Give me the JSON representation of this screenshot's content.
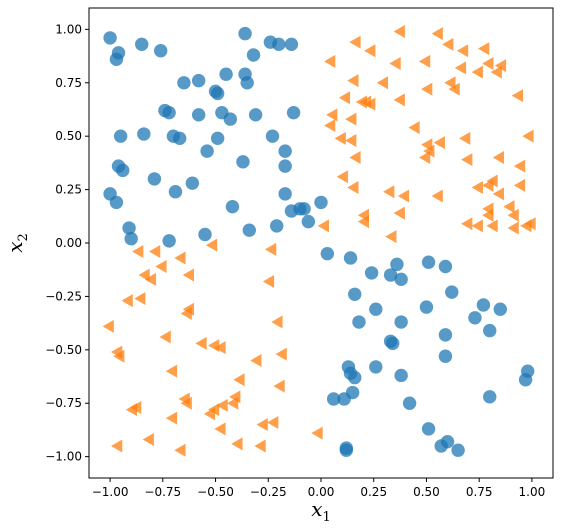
{
  "chart_data": {
    "type": "scatter",
    "title": "",
    "xlabel": "x",
    "xlabel_sub": "1",
    "ylabel": "x",
    "ylabel_sub": "2",
    "xlim": [
      -1.1,
      1.1
    ],
    "ylim": [
      -1.1,
      1.1
    ],
    "xticks": [
      -1.0,
      -0.75,
      -0.5,
      -0.25,
      0.0,
      0.25,
      0.5,
      0.75,
      1.0
    ],
    "xtick_labels": [
      "−1.00",
      "−0.75",
      "−0.50",
      "−0.25",
      "0.00",
      "0.25",
      "0.50",
      "0.75",
      "1.00"
    ],
    "yticks": [
      -1.0,
      -0.75,
      -0.5,
      -0.25,
      0.0,
      0.25,
      0.5,
      0.75,
      1.0
    ],
    "ytick_labels": [
      "−1.00",
      "−0.75",
      "−0.50",
      "−0.25",
      "0.00",
      "0.25",
      "0.50",
      "0.75",
      "1.00"
    ],
    "grid": false,
    "series": [
      {
        "marker": "circle",
        "color": "#1f77b4",
        "points": [
          [
            -1.0,
            0.96
          ],
          [
            -0.97,
            0.86
          ],
          [
            -0.96,
            0.89
          ],
          [
            -0.85,
            0.93
          ],
          [
            -0.76,
            0.9
          ],
          [
            -0.36,
            0.98
          ],
          [
            -0.24,
            0.94
          ],
          [
            -0.2,
            0.93
          ],
          [
            -0.14,
            0.93
          ],
          [
            -0.32,
            0.88
          ],
          [
            -0.36,
            0.79
          ],
          [
            -0.45,
            0.79
          ],
          [
            -0.58,
            0.76
          ],
          [
            -0.65,
            0.75
          ],
          [
            -0.35,
            0.75
          ],
          [
            -0.49,
            0.7
          ],
          [
            -0.5,
            0.71
          ],
          [
            -0.74,
            0.62
          ],
          [
            -0.72,
            0.61
          ],
          [
            -0.58,
            0.6
          ],
          [
            -0.47,
            0.61
          ],
          [
            -0.43,
            0.58
          ],
          [
            -0.31,
            0.6
          ],
          [
            -0.13,
            0.61
          ],
          [
            -0.95,
            0.5
          ],
          [
            -0.84,
            0.51
          ],
          [
            -0.7,
            0.5
          ],
          [
            -0.67,
            0.49
          ],
          [
            -0.49,
            0.49
          ],
          [
            -0.23,
            0.5
          ],
          [
            -0.17,
            0.43
          ],
          [
            -0.54,
            0.43
          ],
          [
            -0.96,
            0.36
          ],
          [
            -0.94,
            0.34
          ],
          [
            -0.37,
            0.38
          ],
          [
            -0.17,
            0.36
          ],
          [
            -0.79,
            0.3
          ],
          [
            -0.61,
            0.28
          ],
          [
            -0.69,
            0.24
          ],
          [
            -1.0,
            0.23
          ],
          [
            -0.17,
            0.23
          ],
          [
            -0.97,
            0.19
          ],
          [
            -0.42,
            0.17
          ],
          [
            -0.1,
            0.16
          ],
          [
            -0.08,
            0.16
          ],
          [
            -0.14,
            0.15
          ],
          [
            -0.06,
            0.1
          ],
          [
            -0.21,
            0.08
          ],
          [
            0.0,
            0.19
          ],
          [
            -0.91,
            0.07
          ],
          [
            -0.55,
            0.04
          ],
          [
            -0.34,
            0.06
          ],
          [
            -0.9,
            0.02
          ],
          [
            -0.72,
            0.01
          ],
          [
            0.03,
            -0.05
          ],
          [
            0.14,
            -0.07
          ],
          [
            0.36,
            -0.1
          ],
          [
            0.51,
            -0.09
          ],
          [
            0.59,
            -0.11
          ],
          [
            0.24,
            -0.14
          ],
          [
            0.33,
            -0.15
          ],
          [
            0.38,
            -0.17
          ],
          [
            0.16,
            -0.24
          ],
          [
            0.62,
            -0.23
          ],
          [
            0.26,
            -0.31
          ],
          [
            0.5,
            -0.3
          ],
          [
            0.77,
            -0.29
          ],
          [
            0.85,
            -0.31
          ],
          [
            0.18,
            -0.37
          ],
          [
            0.38,
            -0.37
          ],
          [
            0.73,
            -0.35
          ],
          [
            0.8,
            -0.41
          ],
          [
            0.59,
            -0.43
          ],
          [
            0.33,
            -0.46
          ],
          [
            0.34,
            -0.47
          ],
          [
            0.59,
            -0.53
          ],
          [
            0.13,
            -0.58
          ],
          [
            0.26,
            -0.58
          ],
          [
            0.14,
            -0.61
          ],
          [
            0.16,
            -0.63
          ],
          [
            0.38,
            -0.62
          ],
          [
            0.98,
            -0.6
          ],
          [
            0.97,
            -0.64
          ],
          [
            0.06,
            -0.73
          ],
          [
            0.11,
            -0.73
          ],
          [
            0.15,
            -0.7
          ],
          [
            0.42,
            -0.75
          ],
          [
            0.8,
            -0.72
          ],
          [
            0.51,
            -0.87
          ],
          [
            0.57,
            -0.95
          ],
          [
            0.6,
            -0.93
          ],
          [
            0.65,
            -0.97
          ],
          [
            0.12,
            -0.96
          ],
          [
            0.12,
            -0.97
          ]
        ]
      },
      {
        "marker": "triangle-left",
        "color": "#ff7f0e",
        "points": [
          [
            0.17,
            0.94
          ],
          [
            0.24,
            0.9
          ],
          [
            0.38,
            0.99
          ],
          [
            0.56,
            0.98
          ],
          [
            0.61,
            0.93
          ],
          [
            0.68,
            0.9
          ],
          [
            0.78,
            0.91
          ],
          [
            0.05,
            0.85
          ],
          [
            0.36,
            0.84
          ],
          [
            0.5,
            0.85
          ],
          [
            0.67,
            0.82
          ],
          [
            0.75,
            0.8
          ],
          [
            0.8,
            0.84
          ],
          [
            0.84,
            0.8
          ],
          [
            0.86,
            0.83
          ],
          [
            0.16,
            0.76
          ],
          [
            0.3,
            0.75
          ],
          [
            0.51,
            0.72
          ],
          [
            0.64,
            0.72
          ],
          [
            0.62,
            0.75
          ],
          [
            0.94,
            0.69
          ],
          [
            0.12,
            0.68
          ],
          [
            0.2,
            0.66
          ],
          [
            0.22,
            0.66
          ],
          [
            0.24,
            0.65
          ],
          [
            0.38,
            0.67
          ],
          [
            0.06,
            0.6
          ],
          [
            0.15,
            0.58
          ],
          [
            0.05,
            0.55
          ],
          [
            0.45,
            0.54
          ],
          [
            0.69,
            0.49
          ],
          [
            0.99,
            0.5
          ],
          [
            0.1,
            0.49
          ],
          [
            0.15,
            0.48
          ],
          [
            0.51,
            0.46
          ],
          [
            0.52,
            0.43
          ],
          [
            0.5,
            0.4
          ],
          [
            0.57,
            0.47
          ],
          [
            0.7,
            0.39
          ],
          [
            0.85,
            0.4
          ],
          [
            0.95,
            0.36
          ],
          [
            0.17,
            0.4
          ],
          [
            0.11,
            0.31
          ],
          [
            0.16,
            0.26
          ],
          [
            0.33,
            0.24
          ],
          [
            0.4,
            0.22
          ],
          [
            0.56,
            0.22
          ],
          [
            0.75,
            0.26
          ],
          [
            0.8,
            0.27
          ],
          [
            0.82,
            0.29
          ],
          [
            0.95,
            0.27
          ],
          [
            0.85,
            0.23
          ],
          [
            0.21,
            0.13
          ],
          [
            0.21,
            0.1
          ],
          [
            0.38,
            0.14
          ],
          [
            0.8,
            0.16
          ],
          [
            0.8,
            0.13
          ],
          [
            0.9,
            0.17
          ],
          [
            0.92,
            0.13
          ],
          [
            0.92,
            0.07
          ],
          [
            0.98,
            0.08
          ],
          [
            1.0,
            0.09
          ],
          [
            0.7,
            0.09
          ],
          [
            0.75,
            0.08
          ],
          [
            0.82,
            0.08
          ],
          [
            0.02,
            0.08
          ],
          [
            0.34,
            0.03
          ],
          [
            -0.86,
            -0.04
          ],
          [
            -0.78,
            -0.04
          ],
          [
            -0.66,
            -0.07
          ],
          [
            -0.75,
            -0.11
          ],
          [
            -0.83,
            -0.15
          ],
          [
            -0.8,
            -0.17
          ],
          [
            -0.62,
            -0.15
          ],
          [
            -0.23,
            -0.03
          ],
          [
            -0.51,
            -0.01
          ],
          [
            -0.24,
            -0.18
          ],
          [
            -0.91,
            -0.27
          ],
          [
            -0.85,
            -0.26
          ],
          [
            -0.62,
            -0.31
          ],
          [
            -0.63,
            -0.33
          ],
          [
            -0.2,
            -0.37
          ],
          [
            -1.0,
            -0.39
          ],
          [
            -0.96,
            -0.51
          ],
          [
            -0.95,
            -0.53
          ],
          [
            -0.73,
            -0.44
          ],
          [
            -0.56,
            -0.47
          ],
          [
            -0.5,
            -0.48
          ],
          [
            -0.47,
            -0.49
          ],
          [
            -0.3,
            -0.55
          ],
          [
            -0.18,
            -0.52
          ],
          [
            -0.7,
            -0.6
          ],
          [
            -0.38,
            -0.64
          ],
          [
            -0.19,
            -0.67
          ],
          [
            -0.64,
            -0.73
          ],
          [
            -0.63,
            -0.75
          ],
          [
            -0.52,
            -0.8
          ],
          [
            -0.5,
            -0.78
          ],
          [
            -0.46,
            -0.76
          ],
          [
            -0.4,
            -0.72
          ],
          [
            -0.41,
            -0.75
          ],
          [
            -0.87,
            -0.77
          ],
          [
            -0.89,
            -0.78
          ],
          [
            -0.7,
            -0.82
          ],
          [
            -0.47,
            -0.87
          ],
          [
            -0.27,
            -0.85
          ],
          [
            -0.22,
            -0.84
          ],
          [
            -0.96,
            -0.95
          ],
          [
            -0.81,
            -0.92
          ],
          [
            -0.66,
            -0.97
          ],
          [
            -0.39,
            -0.94
          ],
          [
            -0.28,
            -0.95
          ],
          [
            -0.01,
            -0.89
          ]
        ]
      }
    ]
  }
}
